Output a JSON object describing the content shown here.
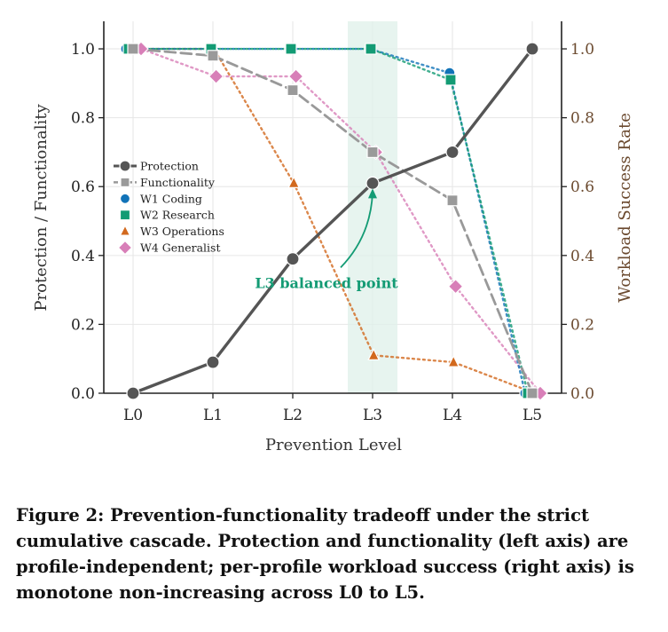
{
  "chart_data": {
    "type": "line",
    "categories": [
      "L0",
      "L1",
      "L2",
      "L3",
      "L4",
      "L5"
    ],
    "xlabel": "Prevention Level",
    "ylabel_left": "Protection / Functionality",
    "ylabel_right": "Workload Success Rate",
    "ylim_left": [
      0,
      1.08
    ],
    "ylim_right": [
      0,
      1.08
    ],
    "left_ticks": [
      "0.0",
      "0.2",
      "0.4",
      "0.6",
      "0.8",
      "1.0"
    ],
    "right_ticks": [
      "0.0",
      "0.2",
      "0.4",
      "0.6",
      "0.8",
      "1.0"
    ],
    "grid": true,
    "legend_position": "center-left",
    "highlight_band": "L3",
    "series": [
      {
        "name": "Protection",
        "axis": "left",
        "style": "solid",
        "marker": "circle",
        "color": "#555555",
        "values": [
          0.0,
          0.09,
          0.39,
          0.61,
          0.7,
          1.0
        ]
      },
      {
        "name": "Functionality",
        "axis": "left",
        "style": "dashed",
        "marker": "square",
        "color": "#999999",
        "values": [
          1.0,
          0.98,
          0.88,
          0.7,
          0.56,
          0.0
        ]
      },
      {
        "name": "W1 Coding",
        "axis": "right",
        "style": "dotted",
        "marker": "circle",
        "color": "#1173b8",
        "values": [
          1.0,
          1.0,
          1.0,
          1.0,
          0.93,
          0.0
        ]
      },
      {
        "name": "W2 Research",
        "axis": "right",
        "style": "dotted",
        "marker": "square",
        "color": "#139b74",
        "values": [
          1.0,
          1.0,
          1.0,
          1.0,
          0.91,
          0.0
        ]
      },
      {
        "name": "W3 Operations",
        "axis": "right",
        "style": "dotted",
        "marker": "triangle",
        "color": "#d2691e",
        "values": [
          1.0,
          1.0,
          0.61,
          0.11,
          0.09,
          0.0
        ]
      },
      {
        "name": "W4 Generalist",
        "axis": "right",
        "style": "dotted",
        "marker": "diamond",
        "color": "#d87fb8",
        "values": [
          1.0,
          0.92,
          0.92,
          0.7,
          0.31,
          0.0
        ]
      }
    ],
    "annotation": {
      "text": "L3 balanced point",
      "target_level": "L3",
      "target_value": 0.61
    }
  },
  "caption": "Figure 2: Prevention-functionality tradeoff under the strict cumulative cascade. Protection and functionality (left axis) are profile-independent; per-profile workload success (right axis) is monotone non-increasing across L0 to L5."
}
